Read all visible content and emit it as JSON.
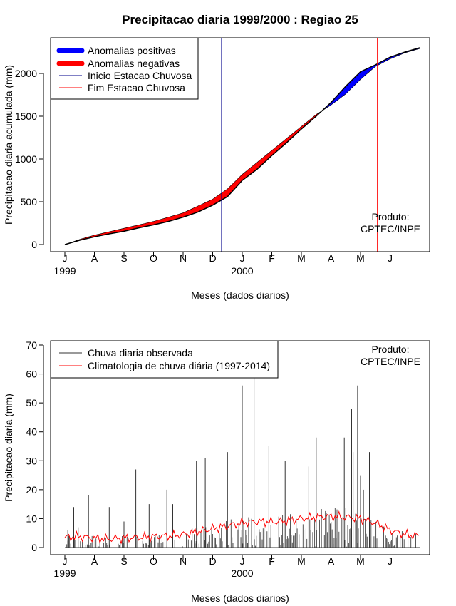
{
  "chart_data": [
    {
      "type": "area",
      "title": "Precipitacao diaria 1999/2000 : Regiao 25",
      "xlabel": "Meses (dados diarios)",
      "ylabel": "Precipitacao diaria acumulada (mm)",
      "ylim": [
        0,
        2350
      ],
      "yticks": [
        0,
        500,
        1000,
        1500,
        2000
      ],
      "months": [
        "J",
        "A",
        "S",
        "O",
        "N",
        "D",
        "J",
        "F",
        "M",
        "A",
        "M",
        "J"
      ],
      "year_labels": [
        {
          "month_index": 0,
          "text": "1999"
        },
        {
          "month_index": 6,
          "text": "2000"
        }
      ],
      "legend": [
        {
          "label": "Anomalias positivas",
          "color": "#0000ff",
          "style": "thick"
        },
        {
          "label": "Anomalias negativas",
          "color": "#ff0000",
          "style": "thick"
        },
        {
          "label": "Inicio Estacao Chuvosa",
          "color": "#00008b",
          "style": "thin"
        },
        {
          "label": "Fim Estacao Chuvosa",
          "color": "#ff0000",
          "style": "thin"
        }
      ],
      "credit": [
        "Produto:",
        "CPTEC/INPE"
      ],
      "start_rainy_season_month": 5.3,
      "end_rainy_season_month": 10.57,
      "series": [
        {
          "name": "Observada acumulada",
          "x": [
            0,
            0.5,
            1,
            1.5,
            2,
            2.5,
            3,
            3.5,
            4,
            4.5,
            5,
            5.5,
            6,
            6.5,
            7,
            7.5,
            8,
            8.5,
            9,
            9.5,
            10,
            10.5,
            11,
            11.5,
            12
          ],
          "values": [
            0,
            50,
            90,
            125,
            155,
            195,
            230,
            270,
            320,
            380,
            460,
            560,
            750,
            880,
            1040,
            1190,
            1350,
            1500,
            1660,
            1850,
            2020,
            2100,
            2190,
            2250,
            2300
          ]
        },
        {
          "name": "Climatologia acumulada",
          "x": [
            0,
            0.5,
            1,
            1.5,
            2,
            2.5,
            3,
            3.5,
            4,
            4.5,
            5,
            5.5,
            6,
            6.5,
            7,
            7.5,
            8,
            8.5,
            9,
            9.5,
            10,
            10.5,
            11,
            11.5,
            12
          ],
          "values": [
            0,
            60,
            110,
            150,
            190,
            230,
            270,
            320,
            370,
            450,
            530,
            650,
            820,
            960,
            1100,
            1240,
            1380,
            1520,
            1630,
            1760,
            1930,
            2080,
            2170,
            2240,
            2290
          ]
        }
      ]
    },
    {
      "type": "line",
      "xlabel": "Meses (dados diarios)",
      "ylabel": "Precipitacao diaria (mm)",
      "ylim": [
        0,
        70
      ],
      "yticks": [
        0,
        10,
        20,
        30,
        40,
        50,
        60,
        70
      ],
      "months": [
        "J",
        "A",
        "S",
        "O",
        "N",
        "D",
        "J",
        "F",
        "M",
        "A",
        "M",
        "J"
      ],
      "year_labels": [
        {
          "month_index": 0,
          "text": "1999"
        },
        {
          "month_index": 6,
          "text": "2000"
        }
      ],
      "legend": [
        {
          "label": "Chuva diaria observada",
          "color": "#333333"
        },
        {
          "label": "Climatologia de chuva diária (1997-2014)",
          "color": "#ff0000"
        }
      ],
      "credit": [
        "Produto:",
        "CPTEC/INPE"
      ],
      "series": [
        {
          "name": "Chuva diaria observada (picos principais)",
          "x": [
            0.1,
            0.15,
            0.3,
            0.45,
            0.8,
            1.5,
            2.0,
            2.4,
            2.85,
            3.45,
            3.65,
            4.45,
            4.75,
            5.5,
            6.0,
            6.4,
            6.9,
            7.45,
            8.25,
            8.5,
            9.0,
            9.45,
            9.7,
            9.75,
            9.9,
            10.0,
            10.1,
            10.3
          ],
          "values": [
            6,
            4,
            14,
            7,
            18,
            14,
            9,
            27,
            15,
            20,
            15,
            30,
            31,
            33,
            56,
            70,
            35,
            30,
            28,
            38,
            40,
            38,
            48,
            33,
            56,
            25,
            20,
            33
          ]
        },
        {
          "name": "Climatologia de chuva diaria",
          "x": [
            0,
            0.5,
            1,
            1.5,
            2,
            2.5,
            3,
            3.5,
            4,
            4.5,
            5,
            5.5,
            6,
            6.5,
            7,
            7.5,
            8,
            8.5,
            9,
            9.5,
            10,
            10.5,
            11,
            11.5,
            12
          ],
          "values": [
            3.5,
            3.8,
            3.2,
            3.0,
            3.2,
            3.5,
            3.8,
            4.0,
            4.5,
            5.5,
            6.5,
            7.5,
            8.5,
            9.0,
            8.8,
            9.2,
            10.0,
            10.5,
            10.8,
            10.5,
            10.0,
            8.5,
            6.0,
            4.5,
            4.0
          ]
        }
      ]
    }
  ]
}
